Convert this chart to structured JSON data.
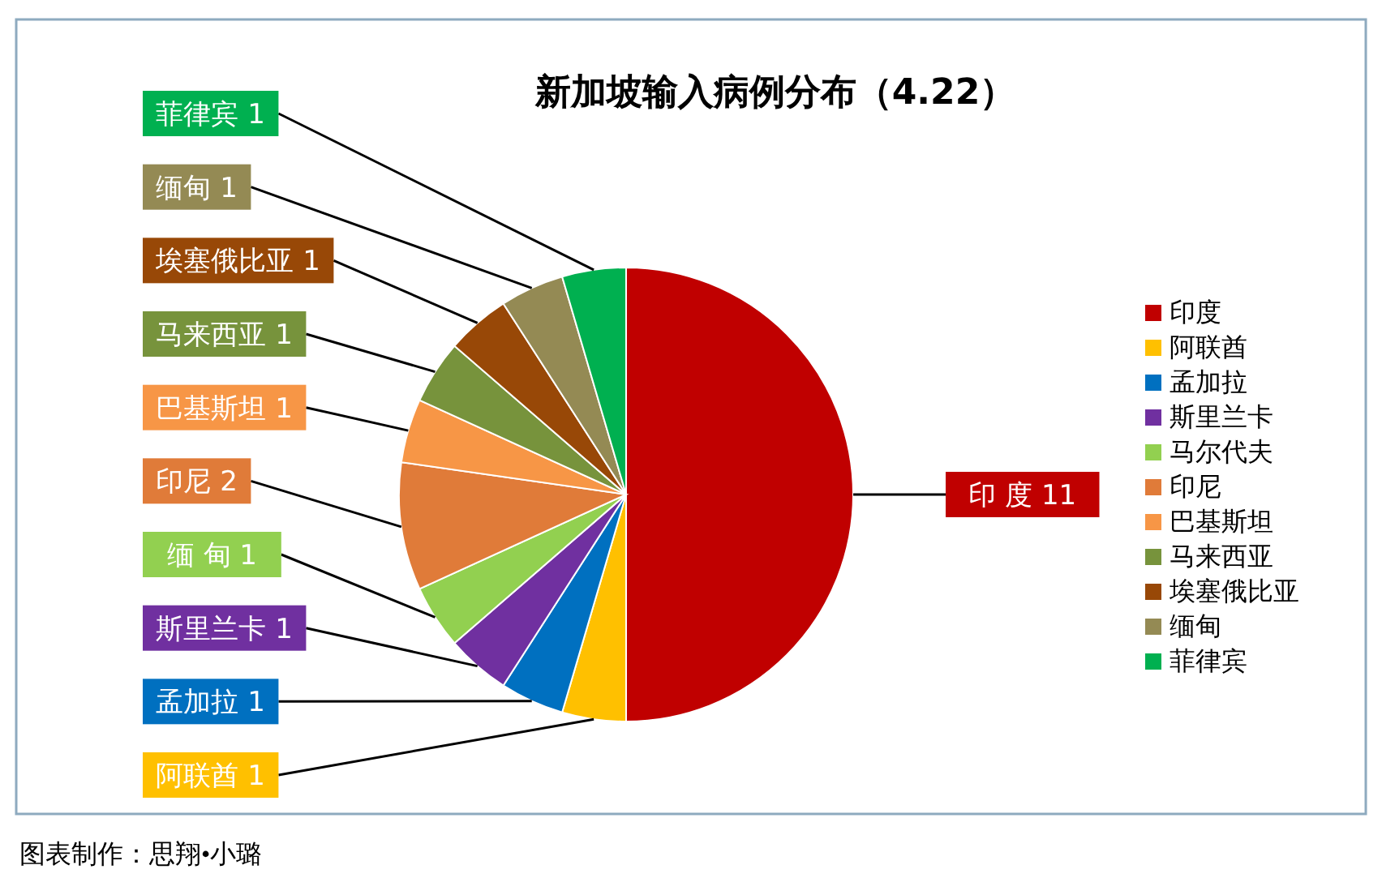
{
  "chart_data": {
    "type": "pie",
    "title": "新加坡输入病例分布（4.22）",
    "categories": [
      "印度",
      "阿联酋",
      "孟加拉",
      "斯里兰卡",
      "马尔代夫",
      "印尼",
      "巴基斯坦",
      "马来西亚",
      "埃塞俄比亚",
      "缅甸",
      "菲律宾"
    ],
    "values": [
      11,
      1,
      1,
      1,
      1,
      2,
      1,
      1,
      1,
      1,
      1
    ],
    "colors": [
      "#c00000",
      "#ffc000",
      "#0070c0",
      "#7030a0",
      "#92d050",
      "#e07b39",
      "#f79646",
      "#77933c",
      "#984807",
      "#948a54",
      "#00b050"
    ],
    "value_labels": [
      "印 度  11",
      "阿联酋 1",
      "孟加拉 1",
      "斯里兰卡 1",
      "缅 甸  1",
      "印尼 2",
      "巴基斯坦 1",
      "马来西亚 1",
      "埃塞俄比亚 1",
      "缅甸 1",
      "菲律宾 1"
    ],
    "legend": "right",
    "annotations": [
      "图表制作：思翔•小璐"
    ]
  }
}
